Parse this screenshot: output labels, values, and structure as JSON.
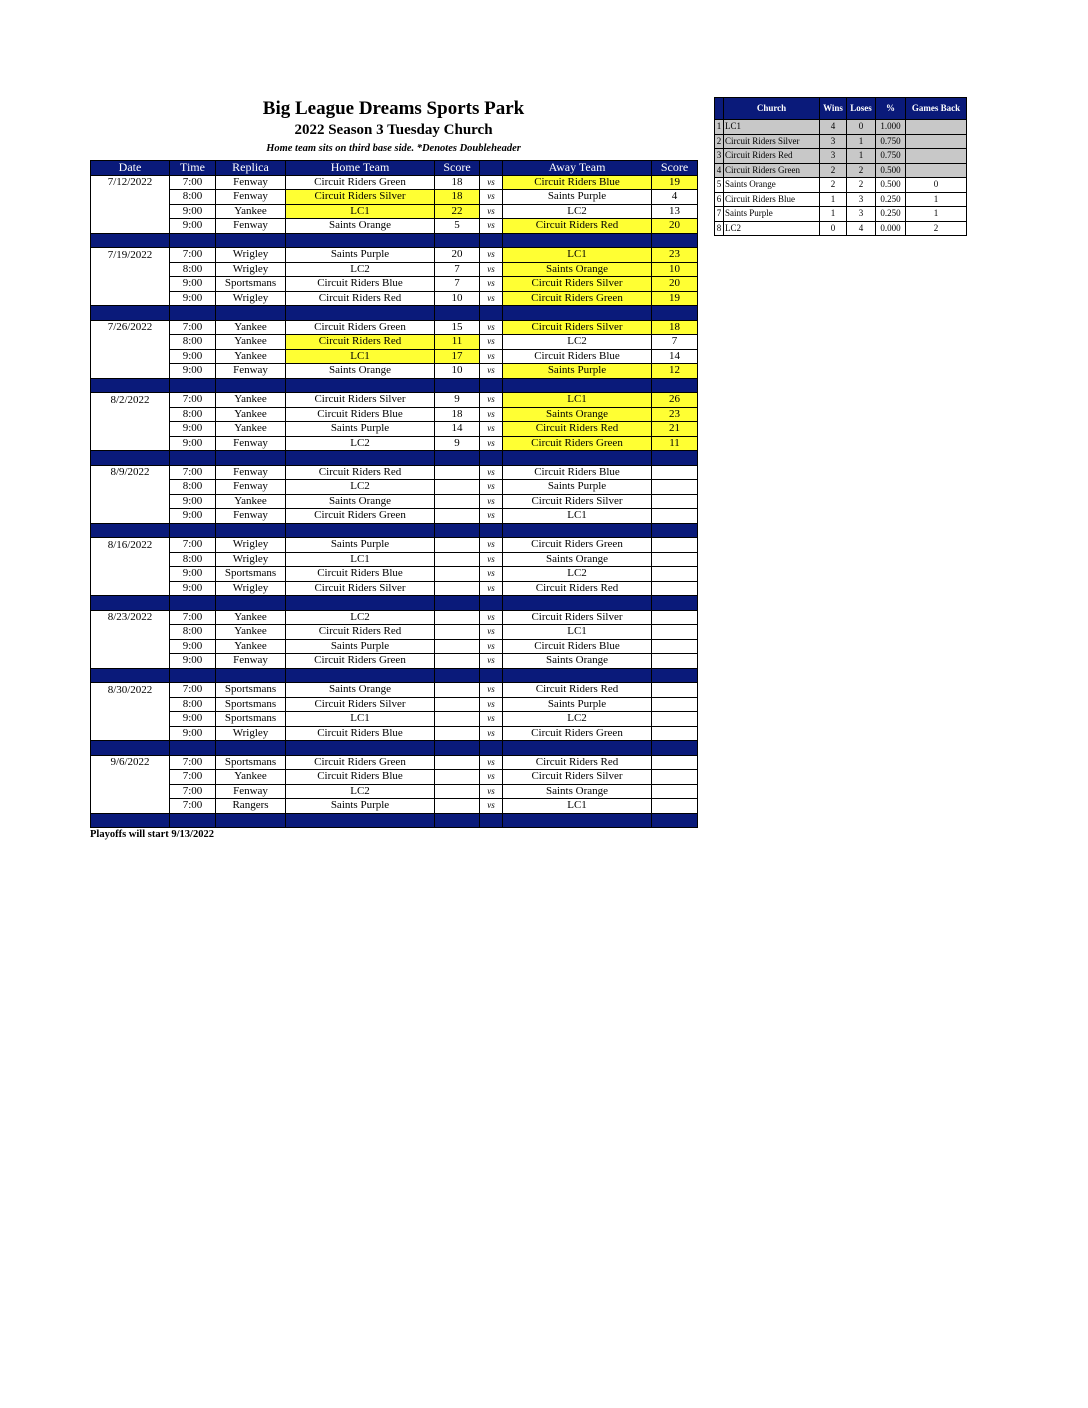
{
  "header": {
    "title": "Big League Dreams Sports Park",
    "subtitle": "2022 Season 3 Tuesday Church",
    "note": "Home team sits on third base side.  *Denotes Doubleheader"
  },
  "schedule": {
    "columns": [
      "Date",
      "Time",
      "Replica",
      "Home Team",
      "Score",
      "Away Team",
      "Score"
    ],
    "vs": "vs",
    "weeks": [
      {
        "date": "7/12/2022",
        "games": [
          {
            "time": "7:00",
            "replica": "Fenway",
            "home": "Circuit Riders Green",
            "home_score": 18,
            "away": "Circuit Riders Blue",
            "away_score": 19
          },
          {
            "time": "8:00",
            "replica": "Fenway",
            "home": "Circuit Riders Silver",
            "home_score": 18,
            "away": "Saints Purple",
            "away_score": 4
          },
          {
            "time": "9:00",
            "replica": "Yankee",
            "home": "LC1",
            "home_score": 22,
            "away": "LC2",
            "away_score": 13
          },
          {
            "time": "9:00",
            "replica": "Fenway",
            "home": "Saints Orange",
            "home_score": 5,
            "away": "Circuit Riders Red",
            "away_score": 20
          }
        ]
      },
      {
        "date": "7/19/2022",
        "games": [
          {
            "time": "7:00",
            "replica": "Wrigley",
            "home": "Saints Purple",
            "home_score": 20,
            "away": "LC1",
            "away_score": 23
          },
          {
            "time": "8:00",
            "replica": "Wrigley",
            "home": "LC2",
            "home_score": 7,
            "away": "Saints Orange",
            "away_score": 10
          },
          {
            "time": "9:00",
            "replica": "Sportsmans",
            "home": "Circuit Riders Blue",
            "home_score": 7,
            "away": "Circuit Riders Silver",
            "away_score": 20
          },
          {
            "time": "9:00",
            "replica": "Wrigley",
            "home": "Circuit Riders Red",
            "home_score": 10,
            "away": "Circuit Riders Green",
            "away_score": 19
          }
        ]
      },
      {
        "date": "7/26/2022",
        "games": [
          {
            "time": "7:00",
            "replica": "Yankee",
            "home": "Circuit Riders Green",
            "home_score": 15,
            "away": "Circuit Riders Silver",
            "away_score": 18
          },
          {
            "time": "8:00",
            "replica": "Yankee",
            "home": "Circuit Riders Red",
            "home_score": 11,
            "away": "LC2",
            "away_score": 7
          },
          {
            "time": "9:00",
            "replica": "Yankee",
            "home": "LC1",
            "home_score": 17,
            "away": "Circuit Riders Blue",
            "away_score": 14
          },
          {
            "time": "9:00",
            "replica": "Fenway",
            "home": "Saints Orange",
            "home_score": 10,
            "away": "Saints Purple",
            "away_score": 12
          }
        ]
      },
      {
        "date": "8/2/2022",
        "games": [
          {
            "time": "7:00",
            "replica": "Yankee",
            "home": "Circuit Riders Silver",
            "home_score": 9,
            "away": "LC1",
            "away_score": 26
          },
          {
            "time": "8:00",
            "replica": "Yankee",
            "home": "Circuit Riders Blue",
            "home_score": 18,
            "away": "Saints Orange",
            "away_score": 23
          },
          {
            "time": "9:00",
            "replica": "Yankee",
            "home": "Saints Purple",
            "home_score": 14,
            "away": "Circuit Riders Red",
            "away_score": 21
          },
          {
            "time": "9:00",
            "replica": "Fenway",
            "home": "LC2",
            "home_score": 9,
            "away": "Circuit Riders Green",
            "away_score": 11
          }
        ]
      },
      {
        "date": "8/9/2022",
        "games": [
          {
            "time": "7:00",
            "replica": "Fenway",
            "home": "Circuit Riders Red",
            "home_score": null,
            "away": "Circuit Riders Blue",
            "away_score": null
          },
          {
            "time": "8:00",
            "replica": "Fenway",
            "home": "LC2",
            "home_score": null,
            "away": "Saints Purple",
            "away_score": null
          },
          {
            "time": "9:00",
            "replica": "Yankee",
            "home": "Saints Orange",
            "home_score": null,
            "away": "Circuit Riders Silver",
            "away_score": null
          },
          {
            "time": "9:00",
            "replica": "Fenway",
            "home": "Circuit Riders Green",
            "home_score": null,
            "away": "LC1",
            "away_score": null
          }
        ]
      },
      {
        "date": "8/16/2022",
        "games": [
          {
            "time": "7:00",
            "replica": "Wrigley",
            "home": "Saints Purple",
            "home_score": null,
            "away": "Circuit Riders Green",
            "away_score": null
          },
          {
            "time": "8:00",
            "replica": "Wrigley",
            "home": "LC1",
            "home_score": null,
            "away": "Saints Orange",
            "away_score": null
          },
          {
            "time": "9:00",
            "replica": "Sportsmans",
            "home": "Circuit Riders Blue",
            "home_score": null,
            "away": "LC2",
            "away_score": null
          },
          {
            "time": "9:00",
            "replica": "Wrigley",
            "home": "Circuit Riders Silver",
            "home_score": null,
            "away": "Circuit Riders Red",
            "away_score": null
          }
        ]
      },
      {
        "date": "8/23/2022",
        "games": [
          {
            "time": "7:00",
            "replica": "Yankee",
            "home": "LC2",
            "home_score": null,
            "away": "Circuit Riders Silver",
            "away_score": null
          },
          {
            "time": "8:00",
            "replica": "Yankee",
            "home": "Circuit Riders Red",
            "home_score": null,
            "away": "LC1",
            "away_score": null
          },
          {
            "time": "9:00",
            "replica": "Yankee",
            "home": "Saints Purple",
            "home_score": null,
            "away": "Circuit Riders Blue",
            "away_score": null
          },
          {
            "time": "9:00",
            "replica": "Fenway",
            "home": "Circuit Riders Green",
            "home_score": null,
            "away": "Saints Orange",
            "away_score": null
          }
        ]
      },
      {
        "date": "8/30/2022",
        "games": [
          {
            "time": "7:00",
            "replica": "Sportsmans",
            "home": "Saints Orange",
            "home_score": null,
            "away": "Circuit Riders Red",
            "away_score": null
          },
          {
            "time": "8:00",
            "replica": "Sportsmans",
            "home": "Circuit Riders Silver",
            "home_score": null,
            "away": "Saints Purple",
            "away_score": null
          },
          {
            "time": "9:00",
            "replica": "Sportsmans",
            "home": "LC1",
            "home_score": null,
            "away": "LC2",
            "away_score": null
          },
          {
            "time": "9:00",
            "replica": "Wrigley",
            "home": "Circuit Riders Blue",
            "home_score": null,
            "away": "Circuit Riders Green",
            "away_score": null
          }
        ]
      },
      {
        "date": "9/6/2022",
        "games": [
          {
            "time": "7:00",
            "replica": "Sportsmans",
            "home": "Circuit Riders Green",
            "home_score": null,
            "away": "Circuit Riders Red",
            "away_score": null
          },
          {
            "time": "7:00",
            "replica": "Yankee",
            "home": "Circuit Riders Blue",
            "home_score": null,
            "away": "Circuit Riders Silver",
            "away_score": null
          },
          {
            "time": "7:00",
            "replica": "Fenway",
            "home": "LC2",
            "home_score": null,
            "away": "Saints Orange",
            "away_score": null
          },
          {
            "time": "7:00",
            "replica": "Rangers",
            "home": "Saints Purple",
            "home_score": null,
            "away": "LC1",
            "away_score": null
          }
        ]
      }
    ]
  },
  "standings": {
    "columns": [
      "Church",
      "Wins",
      "Loses",
      "%",
      "Games Back"
    ],
    "rows": [
      {
        "rank": 1,
        "team": "LC1",
        "wins": 4,
        "loses": 0,
        "pct": "1.000",
        "games_back": null
      },
      {
        "rank": 2,
        "team": "Circuit Riders Silver",
        "wins": 3,
        "loses": 1,
        "pct": "0.750",
        "games_back": null
      },
      {
        "rank": 3,
        "team": "Circuit Riders Red",
        "wins": 3,
        "loses": 1,
        "pct": "0.750",
        "games_back": null
      },
      {
        "rank": 4,
        "team": "Circuit Riders Green",
        "wins": 2,
        "loses": 2,
        "pct": "0.500",
        "games_back": null
      },
      {
        "rank": 5,
        "team": "Saints Orange",
        "wins": 2,
        "loses": 2,
        "pct": "0.500",
        "games_back": 0
      },
      {
        "rank": 6,
        "team": "Circuit Riders Blue",
        "wins": 1,
        "loses": 3,
        "pct": "0.250",
        "games_back": 1
      },
      {
        "rank": 7,
        "team": "Saints Purple",
        "wins": 1,
        "loses": 3,
        "pct": "0.250",
        "games_back": 1
      },
      {
        "rank": 8,
        "team": "LC2",
        "wins": 0,
        "loses": 4,
        "pct": "0.000",
        "games_back": 2
      }
    ]
  },
  "footer": "Playoffs will start 9/13/2022"
}
